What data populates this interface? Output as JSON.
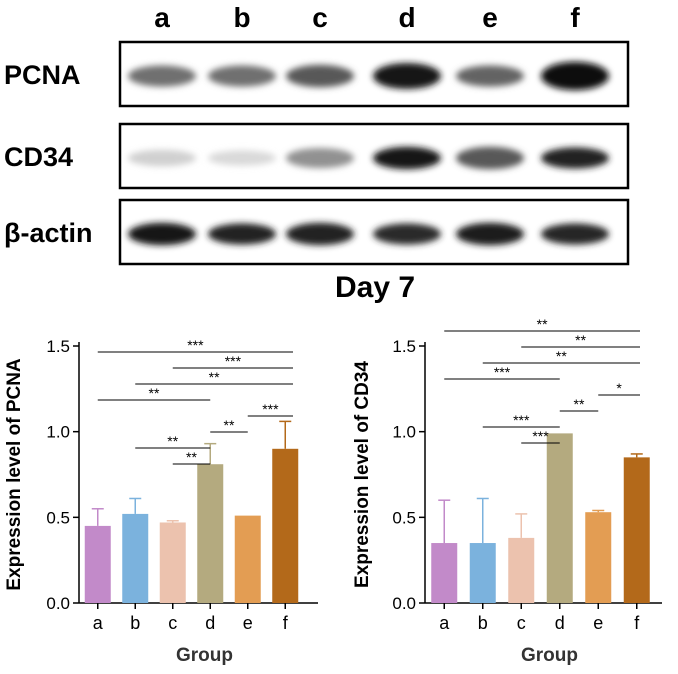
{
  "blot": {
    "lanes": [
      "a",
      "b",
      "c",
      "d",
      "e",
      "f"
    ],
    "rows": [
      {
        "label": "PCNA",
        "intensity": [
          0.55,
          0.55,
          0.65,
          0.95,
          0.6,
          1.0
        ],
        "thickness": [
          0.55,
          0.55,
          0.6,
          0.75,
          0.55,
          0.85
        ]
      },
      {
        "label": "CD34",
        "intensity": [
          0.12,
          0.08,
          0.4,
          0.95,
          0.65,
          0.9
        ],
        "thickness": [
          0.35,
          0.3,
          0.5,
          0.6,
          0.6,
          0.55
        ]
      },
      {
        "label": "β-actin",
        "intensity": [
          0.95,
          0.9,
          0.9,
          0.85,
          0.92,
          0.88
        ],
        "thickness": [
          0.6,
          0.55,
          0.6,
          0.55,
          0.6,
          0.55
        ]
      }
    ]
  },
  "day_title": "Day 7",
  "bar_colors": [
    "#c28ac9",
    "#7bb2dd",
    "#ecc2ae",
    "#b4aa7f",
    "#e39d53",
    "#b3691a"
  ],
  "chart_data": [
    {
      "type": "bar",
      "categories": [
        "a",
        "b",
        "c",
        "d",
        "e",
        "f"
      ],
      "values": [
        0.45,
        0.52,
        0.47,
        0.81,
        0.51,
        0.9
      ],
      "error": [
        0.1,
        0.09,
        0.01,
        0.12,
        0.0,
        0.16
      ],
      "title": "",
      "xlabel": "Group",
      "ylabel": "Expression level of PCNA",
      "ylim": [
        0,
        1.5
      ],
      "yticks": [
        "0.0",
        "0.5",
        "1.0",
        "1.5"
      ],
      "grid": false,
      "significance": [
        {
          "from": "a",
          "to": "f",
          "label": "***"
        },
        {
          "from": "c",
          "to": "f",
          "label": "***"
        },
        {
          "from": "b",
          "to": "f",
          "label": "**"
        },
        {
          "from": "a",
          "to": "d",
          "label": "**"
        },
        {
          "from": "e",
          "to": "f",
          "label": "***"
        },
        {
          "from": "d",
          "to": "e",
          "label": "**"
        },
        {
          "from": "b",
          "to": "d",
          "label": "**"
        },
        {
          "from": "c",
          "to": "d",
          "label": "**"
        }
      ]
    },
    {
      "type": "bar",
      "categories": [
        "a",
        "b",
        "c",
        "d",
        "e",
        "f"
      ],
      "values": [
        0.35,
        0.35,
        0.38,
        0.99,
        0.53,
        0.85
      ],
      "error": [
        0.25,
        0.26,
        0.14,
        0.0,
        0.01,
        0.02
      ],
      "title": "",
      "xlabel": "Group",
      "ylabel": "Expression level of CD34",
      "ylim": [
        0,
        1.5
      ],
      "yticks": [
        "0.0",
        "0.5",
        "1.0",
        "1.5"
      ],
      "grid": false,
      "significance": [
        {
          "from": "a",
          "to": "f",
          "label": "**"
        },
        {
          "from": "c",
          "to": "f",
          "label": "**"
        },
        {
          "from": "b",
          "to": "f",
          "label": "**"
        },
        {
          "from": "a",
          "to": "d",
          "label": "***"
        },
        {
          "from": "e",
          "to": "f",
          "label": "*"
        },
        {
          "from": "d",
          "to": "e",
          "label": "**"
        },
        {
          "from": "b",
          "to": "d",
          "label": "***"
        },
        {
          "from": "c",
          "to": "d",
          "label": "***"
        }
      ]
    }
  ]
}
